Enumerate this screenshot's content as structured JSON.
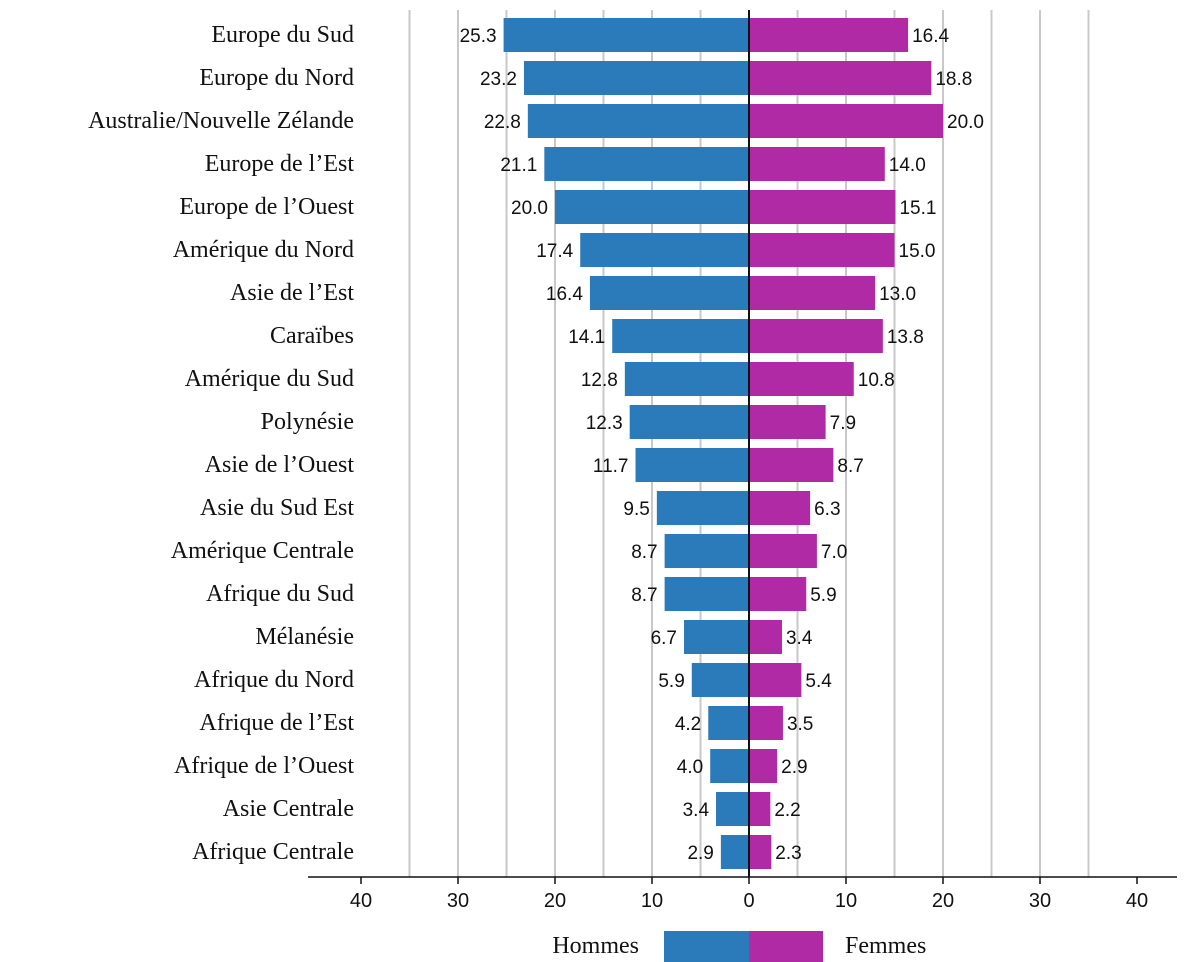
{
  "chart_data": {
    "type": "bar",
    "orientation": "horizontal-diverging",
    "categories": [
      "Europe du Sud",
      "Europe du Nord",
      "Australie/Nouvelle Zélande",
      "Europe de l’Est",
      "Europe de l’Ouest",
      "Amérique du Nord",
      "Asie de l’Est",
      "Caraïbes",
      "Amérique du Sud",
      "Polynésie",
      "Asie de l’Ouest",
      "Asie du Sud Est",
      "Amérique Centrale",
      "Afrique du Sud",
      "Mélanésie",
      "Afrique du Nord",
      "Afrique de l’Est",
      "Afrique de l’Ouest",
      "Asie Centrale",
      "Afrique Centrale"
    ],
    "series": [
      {
        "name": "Hommes",
        "color": "#2b7bba",
        "direction": "left",
        "values": [
          25.3,
          23.2,
          22.8,
          21.1,
          20.0,
          17.4,
          16.4,
          14.1,
          12.8,
          12.3,
          11.7,
          9.5,
          8.7,
          8.7,
          6.7,
          5.9,
          4.2,
          4.0,
          3.4,
          2.9
        ],
        "labels": [
          "25.3",
          "23.2",
          "22.8",
          "21.1",
          "20.0",
          "17.4",
          "16.4",
          "14.1",
          "12.8",
          "12.3",
          "11.7",
          "9.5",
          "8.7",
          "8.7",
          "6.7",
          "5.9",
          "4.2",
          "4.0",
          "3.4",
          "2.9"
        ]
      },
      {
        "name": "Femmes",
        "color": "#b12aa5",
        "direction": "right",
        "values": [
          16.4,
          18.8,
          20.0,
          14.0,
          15.1,
          15.0,
          13.0,
          13.8,
          10.8,
          7.9,
          8.7,
          6.3,
          7.0,
          5.9,
          3.4,
          5.4,
          3.5,
          2.9,
          2.2,
          2.3
        ],
        "labels": [
          "16.4",
          "18.8",
          "20.0",
          "14.0",
          "15.1",
          "15.0",
          "13.0",
          "13.8",
          "10.8",
          "7.9",
          "8.7",
          "6.3",
          "7.0",
          "5.9",
          "3.4",
          "5.4",
          "3.5",
          "2.9",
          "2.2",
          "2.3"
        ]
      }
    ],
    "xlim": [
      -40,
      40
    ],
    "x_ticks": [
      -40,
      -30,
      -20,
      -10,
      0,
      10,
      20,
      30,
      40
    ],
    "x_tick_labels": [
      "40",
      "30",
      "20",
      "10",
      "0",
      "10",
      "20",
      "30",
      "40"
    ],
    "gridlines_at": [
      -35,
      -30,
      -25,
      -20,
      -15,
      -10,
      -5,
      5,
      10,
      15,
      20,
      25,
      30,
      35
    ],
    "grid": true,
    "legend": {
      "placement": "bottom-center"
    },
    "title": "",
    "xlabel": "",
    "ylabel": ""
  }
}
